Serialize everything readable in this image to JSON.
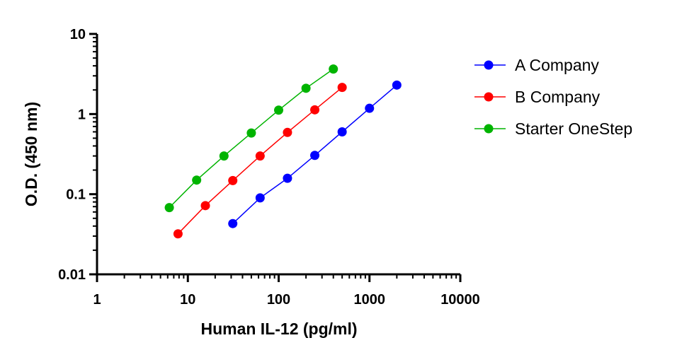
{
  "chart_data": {
    "type": "scatter",
    "xlabel": "Human IL-12 (pg/ml)",
    "ylabel": "O.D. (450 nm)",
    "x_scale": "log",
    "y_scale": "log",
    "xlim": [
      1,
      10000
    ],
    "ylim": [
      0.01,
      10
    ],
    "x_ticks": [
      "1",
      "10",
      "100",
      "1000",
      "10000"
    ],
    "y_ticks": [
      "0.01",
      "0.1",
      "1",
      "10"
    ],
    "grid": false,
    "legend_position": "top-right",
    "series": [
      {
        "name": "A Company",
        "color": "#0000ff",
        "x": [
          31.25,
          62.5,
          125,
          250,
          500,
          1000,
          2000
        ],
        "y": [
          0.043,
          0.09,
          0.158,
          0.305,
          0.6,
          1.18,
          2.3
        ]
      },
      {
        "name": "B Company",
        "color": "#ff0000",
        "x": [
          7.8,
          15.6,
          31.25,
          62.5,
          125,
          250,
          500
        ],
        "y": [
          0.032,
          0.072,
          0.148,
          0.3,
          0.59,
          1.13,
          2.15
        ]
      },
      {
        "name": "Starter OneStep",
        "color": "#00b400",
        "x": [
          6.25,
          12.5,
          25,
          50,
          100,
          200,
          400
        ],
        "y": [
          0.068,
          0.15,
          0.3,
          0.58,
          1.12,
          2.1,
          3.65
        ]
      }
    ]
  }
}
